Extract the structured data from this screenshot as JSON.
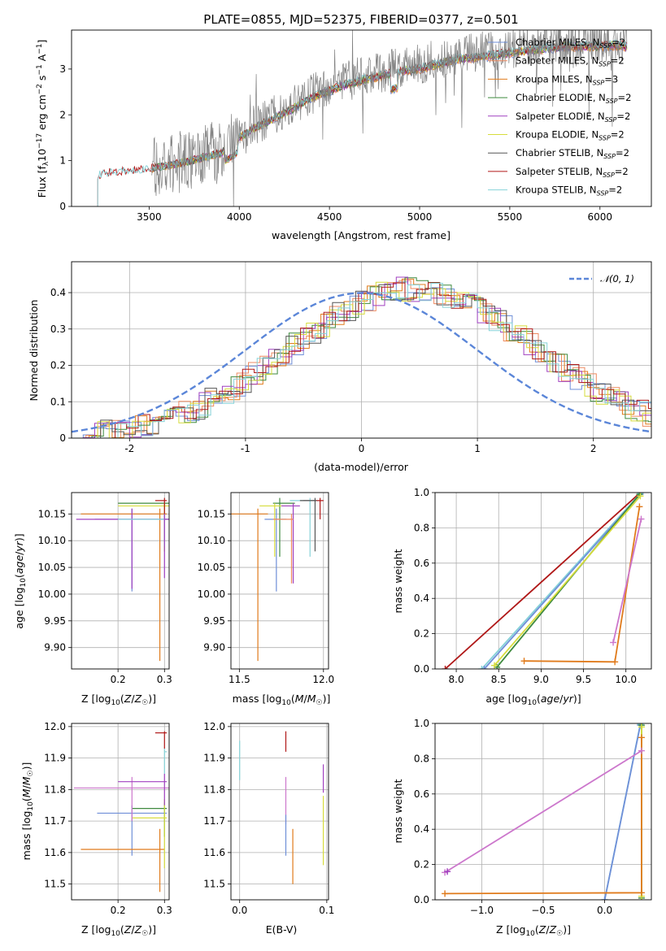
{
  "figure": {
    "title": "PLATE=0855, MJD=52375, FIBERID=0377, z=0.501"
  },
  "colors": {
    "Chabrier MILES": "#6f8fd8",
    "Salpeter MILES": "#ee8a60",
    "Kroupa MILES": "#e07b1c",
    "Chabrier ELODIE": "#3f8a3f",
    "Salpeter ELODIE": "#a040c0",
    "Kroupa ELODIE": "#d6dc3c",
    "Chabrier STELIB": "#555555",
    "Salpeter STELIB": "#b01818",
    "Kroupa STELIB": "#86d2d8",
    "gray": "#808080",
    "gauss": "#5b86d8"
  },
  "chart_data": [
    {
      "id": "spectrum",
      "type": "line",
      "title": "PLATE=0855, MJD=52375, FIBERID=0377, z=0.501",
      "xlabel": "wavelength [Angstrom, rest frame]",
      "ylabel": "Flux [fλ10⁻¹⁷ erg cm⁻² s⁻¹ A⁻¹]",
      "xlim": [
        3070,
        6285
      ],
      "ylim": [
        0,
        3.85
      ],
      "xticks": [
        3500,
        4000,
        4500,
        5000,
        5500,
        6000
      ],
      "yticks": [
        0,
        1,
        2,
        3
      ],
      "grid": false,
      "legend": "top-right",
      "legend_entries": [
        {
          "name": "Chabrier MILES, N",
          "sub": "SSP",
          "tail": "=2",
          "color": "#6f8fd8"
        },
        {
          "name": "Salpeter MILES, N",
          "sub": "SSP",
          "tail": "=2",
          "color": "#ee8a60"
        },
        {
          "name": "Kroupa MILES, N",
          "sub": "SSP",
          "tail": "=3",
          "color": "#e07b1c"
        },
        {
          "name": "Chabrier ELODIE, N",
          "sub": "SSP",
          "tail": "=2",
          "color": "#3f8a3f"
        },
        {
          "name": "Salpeter ELODIE, N",
          "sub": "SSP",
          "tail": "=2",
          "color": "#a040c0"
        },
        {
          "name": "Kroupa ELODIE, N",
          "sub": "SSP",
          "tail": "=2",
          "color": "#d6dc3c"
        },
        {
          "name": "Chabrier STELIB, N",
          "sub": "SSP",
          "tail": "=2",
          "color": "#555555"
        },
        {
          "name": "Salpeter STELIB, N",
          "sub": "SSP",
          "tail": "=2",
          "color": "#b01818"
        },
        {
          "name": "Kroupa STELIB, N",
          "sub": "SSP",
          "tail": "=2",
          "color": "#86d2d8"
        }
      ],
      "continuum": {
        "x": [
          3215,
          3300,
          3400,
          3500,
          3600,
          3700,
          3800,
          3900,
          4000,
          4100,
          4200,
          4300,
          4400,
          4500,
          4600,
          4700,
          4800,
          4900,
          5000,
          5100,
          5200,
          5300,
          5400,
          5500,
          5600,
          5700,
          5800,
          5900,
          6000,
          6100,
          6150
        ],
        "y": [
          0.7,
          0.78,
          0.8,
          0.85,
          0.92,
          1.0,
          1.1,
          1.2,
          1.55,
          1.8,
          2.0,
          2.2,
          2.45,
          2.6,
          2.75,
          2.85,
          2.95,
          3.05,
          3.1,
          3.2,
          3.3,
          3.35,
          3.4,
          3.45,
          3.5,
          3.55,
          3.6,
          3.6,
          3.6,
          3.62,
          3.6
        ]
      },
      "observed_range": [
        3515,
        6150
      ]
    },
    {
      "id": "residuals",
      "type": "line",
      "xlabel": "(data-model)/error",
      "ylabel": "Normed distribution",
      "xlim": [
        -2.5,
        2.5
      ],
      "ylim": [
        0,
        0.485
      ],
      "xticks": [
        -2,
        -1,
        0,
        1,
        2
      ],
      "yticks": [
        0.0,
        0.1,
        0.2,
        0.3,
        0.4
      ],
      "grid": true,
      "legend": "top-right",
      "gauss_label": "𝒩(0, 1)",
      "hist_center": 0.45,
      "hist_sigma": 1.05,
      "hist_peak": 0.41
    },
    {
      "id": "age-vs-Z",
      "type": "scatter",
      "xlabel": "Z [log₁₀(Z/Z☉)]",
      "ylabel": "age  [log₁₀(age/yr)]",
      "xlim": [
        0.1,
        0.31
      ],
      "ylim": [
        9.86,
        10.19
      ],
      "xticks": [
        0.2,
        0.3
      ],
      "xticklabels": [
        "0.2",
        "0.3"
      ],
      "yticks": [
        9.9,
        9.95,
        10.0,
        10.05,
        10.1,
        10.15
      ],
      "yticklabels": [
        "9.90",
        "9.95",
        "10.00",
        "10.05",
        "10.10",
        "10.15"
      ],
      "grid": true,
      "errorbars": [
        {
          "x": 0.23,
          "y": 10.14,
          "xl": 0.15,
          "xh": 0.31,
          "yl": 10.005,
          "yh": 10.16,
          "color": "#6f8fd8"
        },
        {
          "x": 0.29,
          "y": 10.15,
          "xl": 0.12,
          "xh": 0.305,
          "yl": 9.875,
          "yh": 10.16,
          "color": "#e07b1c"
        },
        {
          "x": 0.3,
          "y": 10.17,
          "xl": 0.2,
          "xh": 0.31,
          "yl": 10.08,
          "yh": 10.17,
          "color": "#3f8a3f"
        },
        {
          "x": 0.3,
          "y": 10.165,
          "xl": 0.2,
          "xh": 0.31,
          "yl": 10.08,
          "yh": 10.17,
          "color": "#d6dc3c"
        },
        {
          "x": 0.23,
          "y": 10.14,
          "xl": 0.11,
          "xh": 0.31,
          "yl": 10.01,
          "yh": 10.16,
          "color": "#a040c0"
        },
        {
          "x": 0.3,
          "y": 10.175,
          "xl": 0.28,
          "xh": 0.305,
          "yl": 10.1,
          "yh": 10.18,
          "color": "#b01818"
        },
        {
          "x": 0.3,
          "y": 10.14,
          "xl": 0.2,
          "xh": 0.31,
          "yl": 10.09,
          "yh": 10.15,
          "color": "#86d2d8"
        },
        {
          "x": 0.3,
          "y": 10.14,
          "xl": 0.3,
          "xh": 0.31,
          "yl": 10.03,
          "yh": 10.15,
          "color": "#a040c0"
        }
      ]
    },
    {
      "id": "age-vs-mass",
      "type": "scatter",
      "xlabel": "mass [log₁₀(M/M☉)]",
      "ylabel": "",
      "xlim": [
        11.45,
        12.03
      ],
      "ylim": [
        9.86,
        10.19
      ],
      "xticks": [
        11.5,
        12.0
      ],
      "xticklabels": [
        "11.5",
        "12.0"
      ],
      "yticks": [
        9.9,
        9.95,
        10.0,
        10.05,
        10.1,
        10.15
      ],
      "yticklabels": [
        "9.90",
        "9.95",
        "10.00",
        "10.05",
        "10.10",
        "10.15"
      ],
      "grid": true,
      "errorbars": [
        {
          "x": 11.72,
          "y": 10.14,
          "xl": 11.65,
          "xh": 11.78,
          "yl": 10.005,
          "yh": 10.16,
          "color": "#6f8fd8"
        },
        {
          "x": 11.61,
          "y": 10.15,
          "xl": 11.45,
          "xh": 11.67,
          "yl": 9.875,
          "yh": 10.16,
          "color": "#e07b1c"
        },
        {
          "x": 11.74,
          "y": 10.17,
          "xl": 11.7,
          "xh": 11.83,
          "yl": 10.07,
          "yh": 10.18,
          "color": "#3f8a3f"
        },
        {
          "x": 11.71,
          "y": 10.165,
          "xl": 11.62,
          "xh": 11.8,
          "yl": 10.07,
          "yh": 10.17,
          "color": "#d6dc3c"
        },
        {
          "x": 11.82,
          "y": 10.165,
          "xl": 11.75,
          "xh": 11.86,
          "yl": 10.02,
          "yh": 10.17,
          "color": "#a040c0"
        },
        {
          "x": 11.98,
          "y": 10.175,
          "xl": 11.88,
          "xh": 12.0,
          "yl": 10.14,
          "yh": 10.18,
          "color": "#b01818"
        },
        {
          "x": 11.92,
          "y": 10.175,
          "xl": 11.8,
          "xh": 11.95,
          "yl": 10.07,
          "yh": 10.18,
          "color": "#86d2d8"
        },
        {
          "x": 11.95,
          "y": 10.175,
          "xl": 11.86,
          "xh": 11.96,
          "yl": 10.08,
          "yh": 10.18,
          "color": "#555555"
        },
        {
          "x": 11.81,
          "y": 10.14,
          "xl": 11.7,
          "xh": 11.82,
          "yl": 10.02,
          "yh": 10.15,
          "color": "#ee8a60"
        }
      ]
    },
    {
      "id": "weight-vs-age",
      "type": "line",
      "xlabel": "age  [log₁₀(age/yr)]",
      "ylabel": "mass weight",
      "xlim": [
        7.75,
        10.3
      ],
      "ylim": [
        0,
        1
      ],
      "xticks": [
        8.0,
        8.5,
        9.0,
        9.5,
        10.0
      ],
      "xticklabels": [
        "8.0",
        "8.5",
        "9.0",
        "9.5",
        "10.0"
      ],
      "yticks": [
        0.0,
        0.2,
        0.4,
        0.6,
        0.8,
        1.0
      ],
      "yticklabels": [
        "0.0",
        "0.2",
        "0.4",
        "0.6",
        "0.8",
        "1.0"
      ],
      "grid": true,
      "series": [
        {
          "color": "#b01818",
          "x": [
            7.87,
            10.17
          ],
          "y": [
            0.0,
            1.0
          ]
        },
        {
          "color": "#86d2d8",
          "x": [
            8.3,
            10.17
          ],
          "y": [
            0.0,
            0.995
          ]
        },
        {
          "color": "#6f8fd8",
          "x": [
            8.33,
            10.17
          ],
          "y": [
            0.0,
            0.99
          ]
        },
        {
          "color": "#3f8a3f",
          "x": [
            8.48,
            10.16
          ],
          "y": [
            0.01,
            0.99
          ]
        },
        {
          "color": "#d6dc3c",
          "x": [
            8.45,
            10.17
          ],
          "y": [
            0.02,
            0.98
          ]
        },
        {
          "color": "#e07b1c",
          "x": [
            8.8,
            9.87,
            10.16
          ],
          "y": [
            0.045,
            0.04,
            0.92
          ]
        },
        {
          "color": "#cc77cc",
          "x": [
            9.85,
            10.18
          ],
          "y": [
            0.15,
            0.85
          ]
        }
      ]
    },
    {
      "id": "mass-vs-Z",
      "type": "scatter",
      "xlabel": "Z [log₁₀(Z/Z☉)]",
      "ylabel": "mass [log₁₀(M/M☉)]",
      "xlim": [
        0.1,
        0.31
      ],
      "ylim": [
        11.45,
        12.01
      ],
      "xticks": [
        0.2,
        0.3
      ],
      "xticklabels": [
        "0.2",
        "0.3"
      ],
      "yticks": [
        11.5,
        11.6,
        11.7,
        11.8,
        11.9,
        12.0
      ],
      "yticklabels": [
        "11.5",
        "11.6",
        "11.7",
        "11.8",
        "11.9",
        "12.0"
      ],
      "grid": true,
      "errorbars": [
        {
          "x": 0.23,
          "y": 11.725,
          "xl": 0.155,
          "xh": 0.305,
          "yl": 11.59,
          "yh": 11.75,
          "color": "#6f8fd8"
        },
        {
          "x": 0.29,
          "y": 11.61,
          "xl": 0.12,
          "xh": 0.3,
          "yl": 11.475,
          "yh": 11.675,
          "color": "#e07b1c"
        },
        {
          "x": 0.3,
          "y": 11.74,
          "xl": 0.23,
          "xh": 0.305,
          "yl": 11.65,
          "yh": 11.76,
          "color": "#3f8a3f"
        },
        {
          "x": 0.3,
          "y": 11.71,
          "xl": 0.23,
          "xh": 0.305,
          "yl": 11.55,
          "yh": 11.77,
          "color": "#d6dc3c"
        },
        {
          "x": 0.23,
          "y": 11.805,
          "xl": 0.105,
          "xh": 0.31,
          "yl": 11.7,
          "yh": 11.84,
          "color": "#cc77cc"
        },
        {
          "x": 0.3,
          "y": 11.825,
          "xl": 0.2,
          "xh": 0.305,
          "yl": 11.75,
          "yh": 11.85,
          "color": "#a040c0"
        },
        {
          "x": 0.3,
          "y": 11.98,
          "xl": 0.28,
          "xh": 0.305,
          "yl": 11.93,
          "yh": 11.985,
          "color": "#b01818"
        },
        {
          "x": 0.3,
          "y": 11.92,
          "xl": 0.3,
          "xh": 0.305,
          "yl": 11.85,
          "yh": 11.93,
          "color": "#86d2d8"
        }
      ]
    },
    {
      "id": "mass-vs-EBV",
      "type": "scatter",
      "xlabel": "E(B-V)",
      "ylabel": "",
      "xlim": [
        -0.01,
        0.102
      ],
      "ylim": [
        11.45,
        12.01
      ],
      "xticks": [
        0.0,
        0.1
      ],
      "xticklabels": [
        "0.0",
        "0.1"
      ],
      "yticks": [
        11.5,
        11.6,
        11.7,
        11.8,
        11.9,
        12.0
      ],
      "yticklabels": [
        "11.5",
        "11.6",
        "11.7",
        "11.8",
        "11.9",
        "12.0"
      ],
      "grid": true,
      "errorbars": [
        {
          "x": 0.0,
          "y": 11.9,
          "yl": 11.83,
          "yh": 11.955,
          "color": "#86d2d8"
        },
        {
          "x": 0.053,
          "y": 11.94,
          "yl": 11.92,
          "yh": 11.985,
          "color": "#b01818"
        },
        {
          "x": 0.053,
          "y": 11.78,
          "yl": 11.69,
          "yh": 11.84,
          "color": "#cc77cc"
        },
        {
          "x": 0.053,
          "y": 11.66,
          "yl": 11.59,
          "yh": 11.72,
          "color": "#6f8fd8"
        },
        {
          "x": 0.061,
          "y": 11.6,
          "yl": 11.5,
          "yh": 11.675,
          "color": "#e07b1c"
        },
        {
          "x": 0.096,
          "y": 11.83,
          "yl": 11.79,
          "yh": 11.88,
          "color": "#a040c0"
        },
        {
          "x": 0.096,
          "y": 11.68,
          "yl": 11.56,
          "yh": 11.78,
          "color": "#d6dc3c"
        }
      ]
    },
    {
      "id": "weight-vs-Z",
      "type": "line",
      "xlabel": "Z [log₁₀(Z/Z☉)]",
      "ylabel": "mass weight",
      "xlim": [
        -1.38,
        0.38
      ],
      "ylim": [
        0,
        1
      ],
      "xticks": [
        -1.0,
        -0.5,
        0.0
      ],
      "xticklabels": [
        "−1.0",
        "−0.5",
        "0.0"
      ],
      "yticks": [
        0.0,
        0.2,
        0.4,
        0.6,
        0.8,
        1.0
      ],
      "yticklabels": [
        "0.0",
        "0.2",
        "0.4",
        "0.6",
        "0.8",
        "1.0"
      ],
      "grid": true,
      "series": [
        {
          "color": "#86d2d8",
          "x": [
            0.0,
            0.29
          ],
          "y": [
            0.0,
            0.995
          ]
        },
        {
          "color": "#6f8fd8",
          "x": [
            0.0,
            0.29
          ],
          "y": [
            0.0,
            0.99
          ]
        },
        {
          "color": "#3f8a3f",
          "x": [
            0.3,
            0.3
          ],
          "y": [
            0.01,
            0.99
          ]
        },
        {
          "color": "#d6dc3c",
          "x": [
            0.3,
            0.3
          ],
          "y": [
            0.02,
            0.98
          ]
        },
        {
          "color": "#e07b1c",
          "x": [
            -1.3,
            0.3,
            0.3
          ],
          "y": [
            0.035,
            0.04,
            0.92
          ]
        },
        {
          "color": "#cc77cc",
          "x": [
            -1.3,
            0.3
          ],
          "y": [
            0.155,
            0.845
          ]
        },
        {
          "color": "#a040c0",
          "x": [
            -1.28
          ],
          "y": [
            0.16
          ]
        }
      ]
    }
  ]
}
